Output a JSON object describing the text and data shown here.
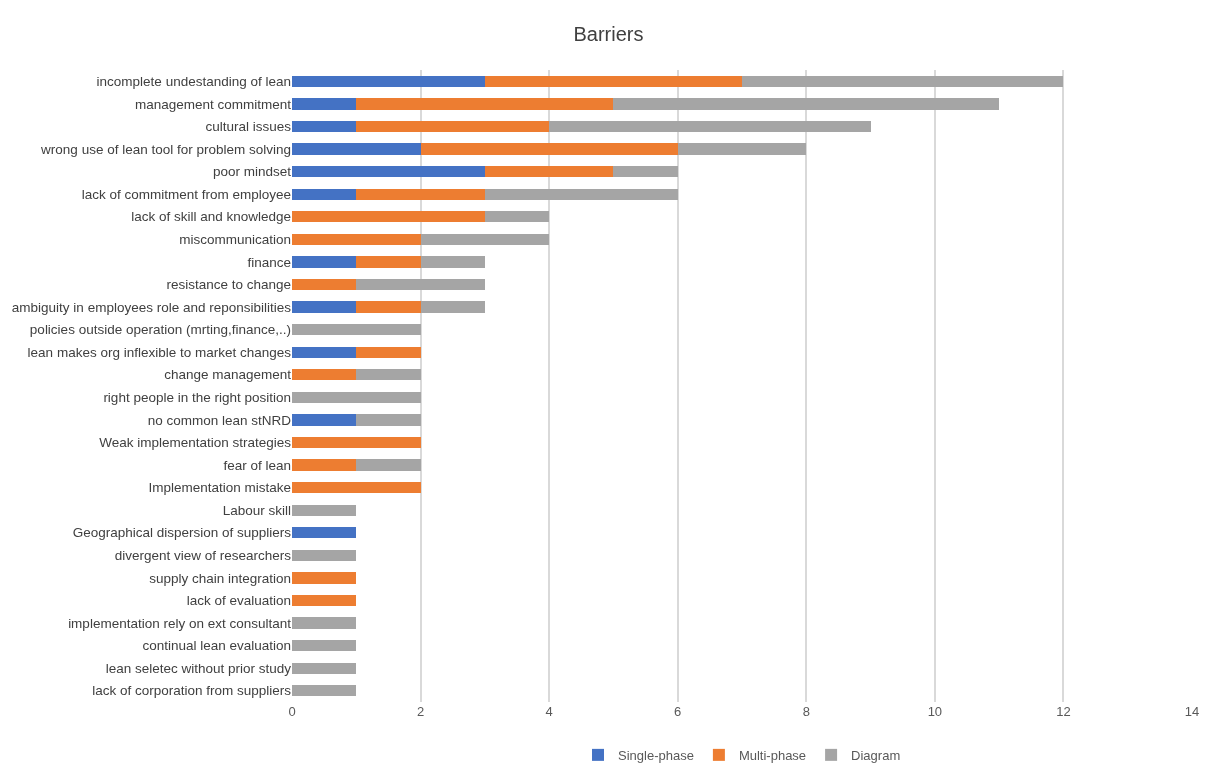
{
  "chart_data": {
    "type": "bar",
    "orientation": "horizontal",
    "stacked": true,
    "title": "Barriers",
    "categories": [
      "incomplete undestanding of lean",
      "management commitment",
      "cultural issues",
      "wrong use of lean tool for problem solving",
      "poor mindset",
      "lack of commitment from employee",
      "lack of skill and knowledge",
      "miscommunication",
      "finance",
      "resistance to change",
      "ambiguity in employees role and reponsibilities",
      "policies outside operation (mrting,finance,..)",
      "lean makes org inflexible to market changes",
      "change management",
      "right people in the right position",
      "no common lean stNRD",
      "Weak implementation strategies",
      "fear of lean",
      "Implementation mistake",
      "Labour skill",
      "Geographical dispersion of suppliers",
      "divergent view of researchers",
      "supply chain integration",
      "lack of evaluation",
      "implementation rely on ext consultant",
      "continual lean evaluation",
      "lean seletec without prior study",
      "lack of corporation from suppliers"
    ],
    "series": [
      {
        "name": "Single-phase",
        "color": "#4472c4",
        "values": [
          3,
          1,
          1,
          2,
          3,
          1,
          null,
          null,
          1,
          null,
          1,
          null,
          1,
          null,
          null,
          1,
          null,
          null,
          null,
          null,
          1,
          null,
          null,
          null,
          null,
          null,
          null,
          null
        ]
      },
      {
        "name": "Multi-phase",
        "color": "#ed7d31",
        "values": [
          4,
          4,
          3,
          4,
          2,
          2,
          3,
          2,
          1,
          1,
          1,
          null,
          1,
          1,
          null,
          null,
          2,
          1,
          2,
          null,
          null,
          null,
          1,
          1,
          null,
          null,
          null,
          null
        ]
      },
      {
        "name": "Diagram",
        "color": "#a5a5a5",
        "values": [
          5,
          6,
          5,
          2,
          1,
          3,
          1,
          2,
          1,
          2,
          1,
          2,
          null,
          1,
          2,
          1,
          null,
          1,
          null,
          1,
          null,
          1,
          null,
          null,
          1,
          1,
          1,
          1
        ]
      }
    ],
    "xlim": [
      0,
      14
    ],
    "xticks": [
      0,
      2,
      4,
      6,
      8,
      10,
      12,
      14
    ],
    "grid": "x",
    "legend": "bottom"
  }
}
